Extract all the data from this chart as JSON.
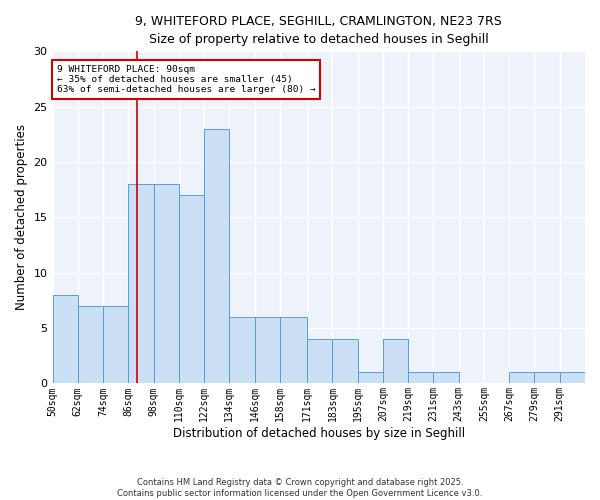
{
  "title_line1": "9, WHITEFORD PLACE, SEGHILL, CRAMLINGTON, NE23 7RS",
  "title_line2": "Size of property relative to detached houses in Seghill",
  "xlabel": "Distribution of detached houses by size in Seghill",
  "ylabel": "Number of detached properties",
  "bins": [
    50,
    62,
    74,
    86,
    98,
    110,
    122,
    134,
    146,
    158,
    171,
    183,
    195,
    207,
    219,
    231,
    243,
    255,
    267,
    279,
    291
  ],
  "bin_labels": [
    "50sqm",
    "62sqm",
    "74sqm",
    "86sqm",
    "98sqm",
    "110sqm",
    "122sqm",
    "134sqm",
    "146sqm",
    "158sqm",
    "171sqm",
    "183sqm",
    "195sqm",
    "207sqm",
    "219sqm",
    "231sqm",
    "243sqm",
    "255sqm",
    "267sqm",
    "279sqm",
    "291sqm"
  ],
  "counts": [
    8,
    7,
    7,
    18,
    18,
    17,
    23,
    6,
    6,
    6,
    4,
    4,
    1,
    4,
    1,
    1,
    0,
    0,
    1,
    1,
    1
  ],
  "bar_color": "#cce0f5",
  "bar_edge_color": "#5b9bd5",
  "red_line_x": 90,
  "annotation_text": "9 WHITEFORD PLACE: 90sqm\n← 35% of detached houses are smaller (45)\n63% of semi-detached houses are larger (80) →",
  "annotation_box_color": "#ffffff",
  "annotation_border_color": "#cc0000",
  "ylim": [
    0,
    30
  ],
  "yticks": [
    0,
    5,
    10,
    15,
    20,
    25,
    30
  ],
  "bg_color": "#eef2fa",
  "footer_text": "Contains HM Land Registry data © Crown copyright and database right 2025.\nContains public sector information licensed under the Open Government Licence v3.0.",
  "red_line_color": "#cc0000",
  "grid_color": "#ffffff"
}
